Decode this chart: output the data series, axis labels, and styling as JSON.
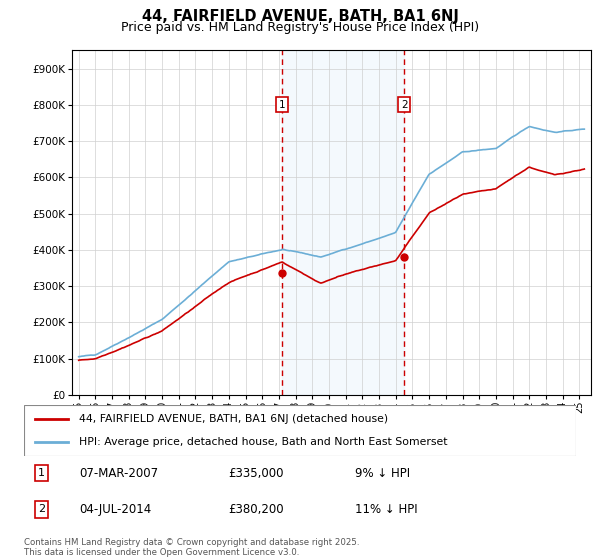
{
  "title": "44, FAIRFIELD AVENUE, BATH, BA1 6NJ",
  "subtitle": "Price paid vs. HM Land Registry's House Price Index (HPI)",
  "ylim": [
    0,
    950000
  ],
  "hpi_color": "#6baed6",
  "price_color": "#cc0000",
  "sale1_date": 2007.18,
  "sale1_price": 335000,
  "sale2_date": 2014.5,
  "sale2_price": 380200,
  "legend_line1": "44, FAIRFIELD AVENUE, BATH, BA1 6NJ (detached house)",
  "legend_line2": "HPI: Average price, detached house, Bath and North East Somerset",
  "footer": "Contains HM Land Registry data © Crown copyright and database right 2025.\nThis data is licensed under the Open Government Licence v3.0."
}
